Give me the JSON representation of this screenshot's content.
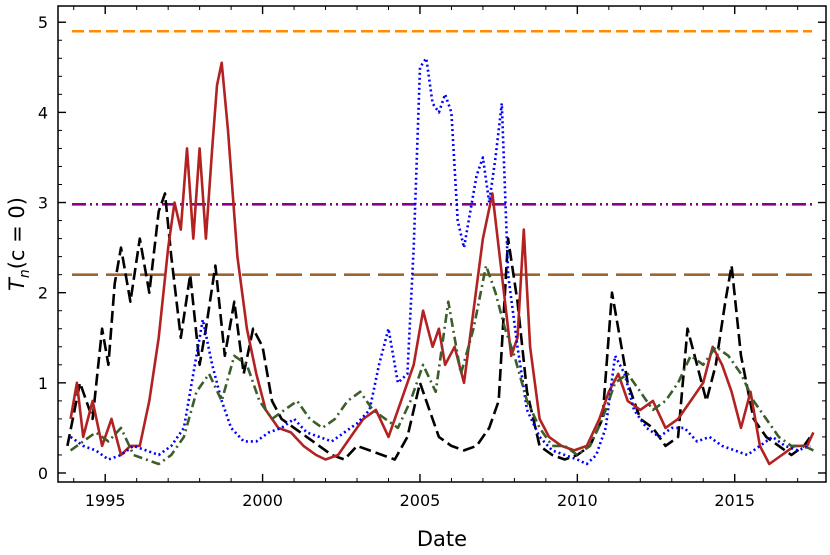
{
  "chart_data": {
    "type": "line",
    "title": "",
    "xlabel": "Date",
    "ylabel": {
      "main": "T",
      "sub": "n",
      "rest": "(c = 0)"
    },
    "xlim": [
      1993.5,
      2017.9
    ],
    "ylim": [
      -0.1,
      5.18
    ],
    "x_ticks": [
      {
        "value": 1995,
        "label": "1995"
      },
      {
        "value": 2000,
        "label": "2000"
      },
      {
        "value": 2005,
        "label": "2005"
      },
      {
        "value": 2010,
        "label": "2010"
      },
      {
        "value": 2015,
        "label": "2015"
      }
    ],
    "y_ticks": [
      {
        "value": 0,
        "label": "0"
      },
      {
        "value": 1,
        "label": "1"
      },
      {
        "value": 2,
        "label": "2"
      },
      {
        "value": 3,
        "label": "3"
      },
      {
        "value": 4,
        "label": "4"
      },
      {
        "value": 5,
        "label": "5"
      }
    ],
    "grid": false,
    "reference_lines": [
      {
        "y": 4.9,
        "color": "#ff8c00",
        "style": "dashed"
      },
      {
        "y": 2.98,
        "color": "#8b008b",
        "style": "dashdotdot"
      },
      {
        "y": 2.2,
        "color": "#a0642d",
        "style": "longdash"
      }
    ],
    "series": [
      {
        "color": "#000000",
        "style": "dashed",
        "x": [
          1993.8,
          1994.2,
          1994.6,
          1994.9,
          1995.1,
          1995.3,
          1995.5,
          1995.8,
          1996.1,
          1996.4,
          1996.7,
          1996.9,
          1997.1,
          1997.4,
          1997.7,
          1998.0,
          1998.2,
          1998.5,
          1998.8,
          1999.1,
          1999.4,
          1999.7,
          2000.0,
          2000.3,
          2000.6,
          2001.0,
          2001.4,
          2001.8,
          2002.2,
          2002.6,
          2003.0,
          2003.4,
          2003.8,
          2004.2,
          2004.6,
          2005.0,
          2005.3,
          2005.6,
          2006.0,
          2006.4,
          2006.8,
          2007.2,
          2007.5,
          2007.8,
          2008.1,
          2008.4,
          2008.8,
          2009.2,
          2009.6,
          2010.0,
          2010.4,
          2010.8,
          2011.1,
          2011.3,
          2011.6,
          2012.0,
          2012.4,
          2012.8,
          2013.2,
          2013.5,
          2013.8,
          2014.1,
          2014.4,
          2014.7,
          2014.9,
          2015.2,
          2015.6,
          2016.0,
          2016.4,
          2016.8,
          2017.2,
          2017.4
        ],
        "y": [
          0.3,
          1.0,
          0.6,
          1.6,
          1.2,
          2.1,
          2.5,
          1.9,
          2.6,
          2.0,
          2.9,
          3.1,
          2.4,
          1.5,
          2.2,
          1.2,
          1.6,
          2.3,
          1.3,
          1.9,
          1.1,
          1.6,
          1.4,
          0.8,
          0.6,
          0.5,
          0.4,
          0.3,
          0.2,
          0.15,
          0.3,
          0.25,
          0.2,
          0.15,
          0.4,
          1.0,
          0.7,
          0.4,
          0.3,
          0.25,
          0.3,
          0.5,
          0.8,
          2.6,
          1.9,
          0.9,
          0.3,
          0.2,
          0.15,
          0.2,
          0.3,
          0.6,
          2.0,
          1.6,
          1.0,
          0.6,
          0.5,
          0.3,
          0.4,
          1.6,
          1.2,
          0.8,
          1.2,
          1.9,
          2.3,
          1.3,
          0.6,
          0.4,
          0.3,
          0.2,
          0.3,
          0.4
        ]
      },
      {
        "color": "#b22222",
        "style": "solid",
        "x": [
          1993.9,
          1994.1,
          1994.3,
          1994.6,
          1994.9,
          1995.2,
          1995.5,
          1995.8,
          1996.1,
          1996.4,
          1996.7,
          1997.0,
          1997.2,
          1997.4,
          1997.6,
          1997.8,
          1998.0,
          1998.2,
          1998.4,
          1998.55,
          1998.7,
          1998.9,
          1999.2,
          1999.5,
          1999.8,
          2000.1,
          2000.5,
          2000.9,
          2001.3,
          2001.7,
          2002.0,
          2002.4,
          2002.8,
          2003.2,
          2003.6,
          2004.0,
          2004.4,
          2004.8,
          2005.1,
          2005.4,
          2005.6,
          2005.8,
          2006.1,
          2006.4,
          2006.7,
          2007.0,
          2007.3,
          2007.5,
          2007.7,
          2007.9,
          2008.1,
          2008.3,
          2008.5,
          2008.8,
          2009.1,
          2009.5,
          2009.9,
          2010.3,
          2010.7,
          2011.0,
          2011.3,
          2011.6,
          2012.0,
          2012.4,
          2012.8,
          2013.2,
          2013.6,
          2014.0,
          2014.3,
          2014.6,
          2014.9,
          2015.2,
          2015.5,
          2015.8,
          2016.1,
          2016.5,
          2016.9,
          2017.3,
          2017.5
        ],
        "y": [
          0.6,
          1.0,
          0.4,
          0.8,
          0.3,
          0.6,
          0.2,
          0.3,
          0.3,
          0.8,
          1.5,
          2.5,
          3.0,
          2.7,
          3.6,
          2.6,
          3.6,
          2.6,
          3.6,
          4.3,
          4.55,
          3.8,
          2.4,
          1.6,
          1.1,
          0.7,
          0.5,
          0.45,
          0.3,
          0.2,
          0.15,
          0.2,
          0.4,
          0.6,
          0.7,
          0.4,
          0.8,
          1.2,
          1.8,
          1.4,
          1.6,
          1.2,
          1.4,
          1.0,
          1.8,
          2.6,
          3.1,
          2.5,
          1.9,
          1.3,
          1.5,
          2.7,
          1.4,
          0.6,
          0.4,
          0.3,
          0.25,
          0.3,
          0.6,
          0.9,
          1.1,
          0.8,
          0.7,
          0.8,
          0.5,
          0.6,
          0.8,
          1.0,
          1.4,
          1.2,
          0.9,
          0.5,
          0.9,
          0.3,
          0.1,
          0.2,
          0.3,
          0.3,
          0.45
        ]
      },
      {
        "color": "#0000ff",
        "style": "dotted",
        "x": [
          1993.9,
          1994.3,
          1994.7,
          1995.1,
          1995.5,
          1995.9,
          1996.3,
          1996.7,
          1997.1,
          1997.5,
          1997.8,
          1998.1,
          1998.4,
          1998.7,
          1999.0,
          1999.4,
          1999.8,
          2000.2,
          2000.6,
          2001.0,
          2001.4,
          2001.8,
          2002.2,
          2002.6,
          2003.0,
          2003.4,
          2003.7,
          2004.0,
          2004.3,
          2004.6,
          2004.8,
          2005.0,
          2005.2,
          2005.4,
          2005.6,
          2005.8,
          2006.0,
          2006.2,
          2006.4,
          2006.6,
          2006.8,
          2007.0,
          2007.2,
          2007.4,
          2007.6,
          2007.8,
          2008.1,
          2008.4,
          2008.8,
          2009.2,
          2009.6,
          2010.0,
          2010.3,
          2010.6,
          2010.9,
          2011.2,
          2011.5,
          2011.8,
          2012.2,
          2012.6,
          2013.0,
          2013.4,
          2013.8,
          2014.2,
          2014.6,
          2015.0,
          2015.4,
          2015.8,
          2016.2,
          2016.6,
          2017.0,
          2017.4
        ],
        "y": [
          0.4,
          0.3,
          0.25,
          0.15,
          0.2,
          0.3,
          0.25,
          0.2,
          0.3,
          0.5,
          1.1,
          1.7,
          1.2,
          0.8,
          0.5,
          0.35,
          0.35,
          0.45,
          0.5,
          0.6,
          0.45,
          0.4,
          0.35,
          0.45,
          0.55,
          0.7,
          1.2,
          1.6,
          1.0,
          1.1,
          2.5,
          4.5,
          4.6,
          4.1,
          4.0,
          4.2,
          4.0,
          2.8,
          2.5,
          2.9,
          3.3,
          3.5,
          3.0,
          3.5,
          4.1,
          2.2,
          1.4,
          0.7,
          0.4,
          0.25,
          0.2,
          0.15,
          0.1,
          0.2,
          0.5,
          1.3,
          1.1,
          0.7,
          0.5,
          0.4,
          0.5,
          0.5,
          0.35,
          0.4,
          0.3,
          0.25,
          0.2,
          0.3,
          0.4,
          0.3,
          0.25,
          0.3
        ]
      },
      {
        "color": "#3b5e2b",
        "style": "dashdot",
        "x": [
          1993.9,
          1994.3,
          1994.7,
          1995.1,
          1995.5,
          1995.9,
          1996.3,
          1996.7,
          1997.1,
          1997.5,
          1997.9,
          1998.3,
          1998.7,
          1999.1,
          1999.5,
          1999.9,
          2000.3,
          2000.7,
          2001.1,
          2001.5,
          2001.9,
          2002.3,
          2002.7,
          2003.1,
          2003.5,
          2003.9,
          2004.3,
          2004.7,
          2005.1,
          2005.5,
          2005.9,
          2006.3,
          2006.7,
          2007.1,
          2007.4,
          2007.7,
          2008.0,
          2008.4,
          2008.8,
          2009.2,
          2009.6,
          2010.0,
          2010.4,
          2010.8,
          2011.2,
          2011.6,
          2012.0,
          2012.4,
          2012.8,
          2013.2,
          2013.6,
          2014.0,
          2014.4,
          2014.8,
          2015.2,
          2015.6,
          2016.0,
          2016.4,
          2016.8,
          2017.2,
          2017.5
        ],
        "y": [
          0.25,
          0.35,
          0.45,
          0.35,
          0.5,
          0.2,
          0.15,
          0.1,
          0.2,
          0.4,
          0.9,
          1.1,
          0.8,
          1.3,
          1.2,
          0.8,
          0.6,
          0.7,
          0.8,
          0.6,
          0.5,
          0.6,
          0.8,
          0.9,
          0.7,
          0.6,
          0.5,
          0.8,
          1.2,
          0.9,
          1.9,
          1.1,
          1.6,
          2.3,
          2.0,
          1.6,
          1.3,
          0.8,
          0.5,
          0.3,
          0.3,
          0.2,
          0.3,
          0.6,
          1.0,
          1.1,
          0.9,
          0.7,
          0.8,
          1.0,
          1.3,
          1.2,
          1.4,
          1.3,
          1.1,
          0.8,
          0.6,
          0.4,
          0.3,
          0.3,
          0.25
        ]
      }
    ]
  }
}
